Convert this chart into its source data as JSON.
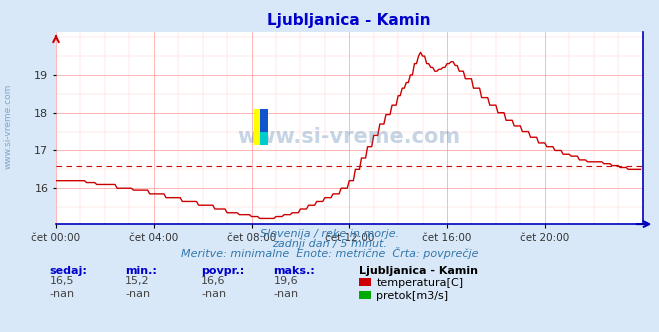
{
  "title": "Ljubljanica - Kamin",
  "title_color": "#0000cc",
  "bg_color": "#d8e8f8",
  "plot_bg_color": "#ffffff",
  "grid_color_major": "#ff9999",
  "grid_color_minor": "#ffcccc",
  "avg_value": 16.6,
  "xtick_labels": [
    "čet 00:00",
    "čet 04:00",
    "čet 08:00",
    "čet 12:00",
    "čet 16:00",
    "čet 20:00"
  ],
  "xtick_positions": [
    0,
    48,
    96,
    144,
    192,
    240
  ],
  "ytick_values": [
    16,
    17,
    18,
    19
  ],
  "ylim": [
    15.05,
    20.15
  ],
  "xlim": [
    0,
    288
  ],
  "line_color": "#cc0000",
  "line_width": 1.0,
  "subtitle1": "Slovenija / reke in morje.",
  "subtitle2": "zadnji dan / 5 minut.",
  "subtitle3": "Meritve: minimalne  Enote: metrične  Črta: povprečje",
  "subtitle_color": "#3377aa",
  "footer_label_color": "#0000cc",
  "sedaj_label": "sedaj:",
  "min_label": "min.:",
  "povpr_label": "povpr.:",
  "maks_label": "maks.:",
  "sedaj_val": "16,5",
  "min_val": "15,2",
  "povpr_val": "16,6",
  "maks_val": "19,6",
  "sedaj_val2": "-nan",
  "min_val2": "-nan",
  "povpr_val2": "-nan",
  "maks_val2": "-nan",
  "legend_title": "Ljubljanica - Kamin",
  "legend_item1": "temperatura[C]",
  "legend_item2": "pretok[m3/s]",
  "legend_color1": "#cc0000",
  "legend_color2": "#00aa00",
  "watermark_color": "#4477aa",
  "sidebar_text": "www.si-vreme.com"
}
